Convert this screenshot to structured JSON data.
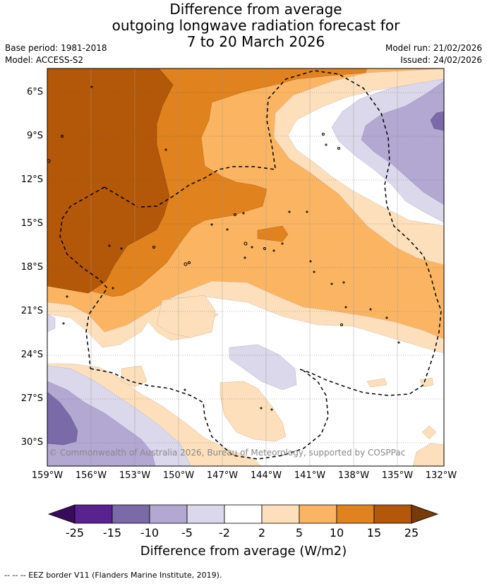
{
  "title": {
    "line1": "Difference from average",
    "line2": "outgoing longwave radiation forecast for",
    "line3": "7 to 20 March 2026"
  },
  "meta": {
    "base_period": "Base period: 1981-2018",
    "model": "Model: ACCESS-S2",
    "model_run": "Model run: 21/02/2026",
    "issued": "Issued: 24/02/2026"
  },
  "map": {
    "lat_labels": [
      "6°S",
      "9°S",
      "12°S",
      "15°S",
      "18°S",
      "21°S",
      "24°S",
      "27°S",
      "30°S"
    ],
    "lon_labels": [
      "159°W",
      "156°W",
      "153°W",
      "150°W",
      "147°W",
      "144°W",
      "141°W",
      "138°W",
      "135°W",
      "132°W"
    ],
    "copyright": "© Commonwealth of Australia 2026, Bureau of Meteorology, supported by COSPPac"
  },
  "colorbar": {
    "ticks": [
      "-25",
      "-15",
      "-10",
      "-5",
      "-2",
      "2",
      "5",
      "10",
      "15",
      "25"
    ],
    "colors": [
      "#58238f",
      "#7b6aa8",
      "#b2a8d2",
      "#dad8ea",
      "#ffffff",
      "#fde0bb",
      "#fbb562",
      "#e0821e",
      "#b35808"
    ],
    "under_color": "#3a0a5c",
    "over_color": "#7a3a08",
    "label": "Difference from average (W/m2)"
  },
  "source": "--  --  -- EEZ border V11 (Flanders Marine Institute, 2019)."
}
